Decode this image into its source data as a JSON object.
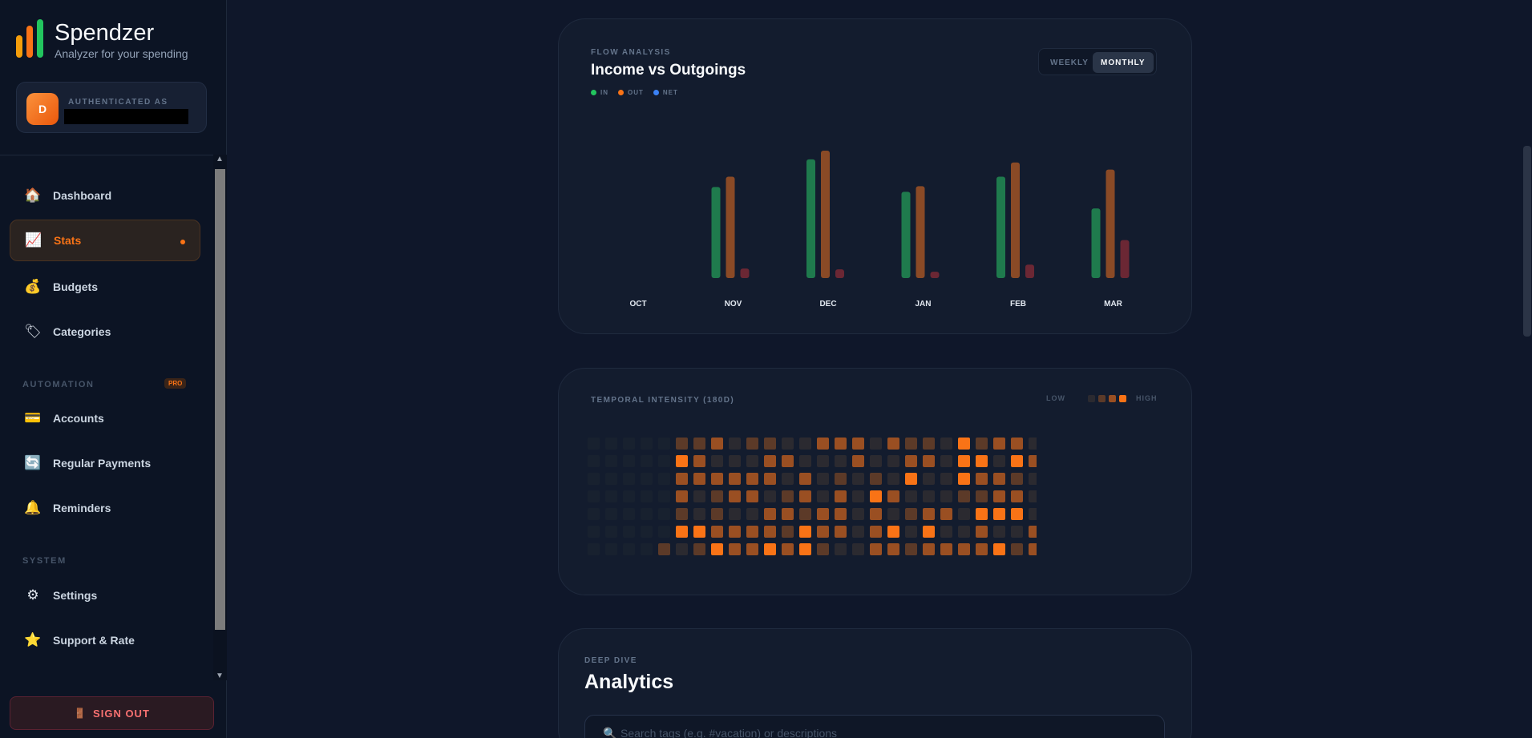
{
  "app": {
    "title": "Spendzer",
    "subtitle": "Analyzer for your spending"
  },
  "user": {
    "avatar_initial": "D",
    "auth_label": "AUTHENTICATED AS"
  },
  "nav": {
    "main": [
      {
        "label": "Dashboard",
        "icon": "house-icon",
        "glyph": "🏠"
      },
      {
        "label": "Stats",
        "icon": "chart-icon",
        "glyph": "📈",
        "active": true
      },
      {
        "label": "Budgets",
        "icon": "money-bag-icon",
        "glyph": "💰"
      },
      {
        "label": "Categories",
        "icon": "tag-icon",
        "glyph": "🏷"
      }
    ],
    "automation_label": "AUTOMATION",
    "pro_badge": "PRO",
    "automation": [
      {
        "label": "Accounts",
        "icon": "card-icon",
        "glyph": "💳"
      },
      {
        "label": "Regular Payments",
        "icon": "refresh-icon",
        "glyph": "🔄"
      },
      {
        "label": "Reminders",
        "icon": "bell-icon",
        "glyph": "🔔"
      }
    ],
    "system_label": "SYSTEM",
    "system": [
      {
        "label": "Settings",
        "icon": "gear-icon",
        "glyph": "⚙"
      },
      {
        "label": "Support & Rate",
        "icon": "star-icon",
        "glyph": "⭐"
      }
    ],
    "sign_out": "SIGN OUT"
  },
  "flow": {
    "kicker": "FLOW ANALYSIS",
    "title": "Income vs Outgoings",
    "toggle": [
      "WEEKLY",
      "MONTHLY"
    ],
    "legend": [
      {
        "label": "IN",
        "color": "#22c55e"
      },
      {
        "label": "OUT",
        "color": "#f97316"
      },
      {
        "label": "NET",
        "color": "#3b82f6"
      }
    ]
  },
  "chart_data": {
    "type": "bar",
    "categories": [
      "OCT",
      "NOV",
      "DEC",
      "JAN",
      "FEB",
      "MAR"
    ],
    "series": [
      {
        "name": "IN",
        "values": [
          0,
          115,
          150,
          109,
          128,
          88
        ],
        "color": "#1f7a4d"
      },
      {
        "name": "OUT",
        "values": [
          0,
          128,
          161,
          116,
          146,
          137
        ],
        "color": "#8a4a26"
      },
      {
        "name": "NET",
        "values": [
          0,
          12,
          11,
          8,
          17,
          48
        ],
        "color": "#6b2734"
      }
    ],
    "ylim": [
      0,
      165
    ],
    "grid": false,
    "legend_position": "top-left"
  },
  "heatmap": {
    "kicker": "TEMPORAL INTENSITY (180D)",
    "low_label": "LOW",
    "high_label": "HIGH",
    "colors": [
      "#18212f",
      "#2b2a30",
      "#5c3a28",
      "#9a4f22",
      "#f97316"
    ]
  },
  "analytics": {
    "kicker": "DEEP DIVE",
    "title": "Analytics",
    "search_placeholder": "Search tags (e.g. #vacation) or descriptions"
  }
}
